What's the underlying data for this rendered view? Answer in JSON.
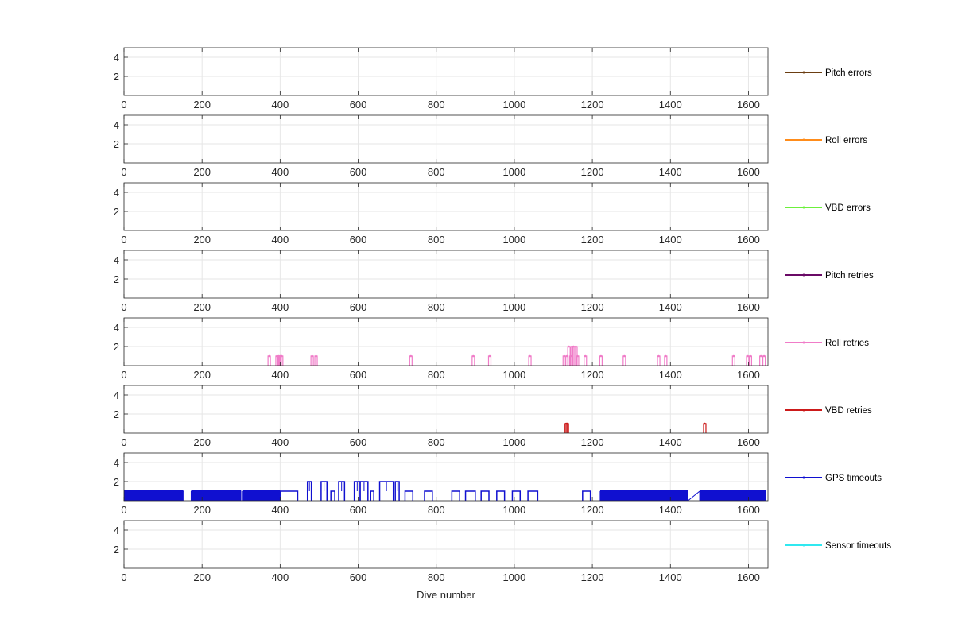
{
  "chart_data": {
    "type": "line",
    "xlabel": "Dive number",
    "xlim": [
      0,
      1650
    ],
    "xticks": [
      0,
      200,
      400,
      600,
      800,
      1000,
      1200,
      1400,
      1600
    ],
    "ylim": [
      0,
      5
    ],
    "yticks": [
      2,
      4
    ],
    "grid": true,
    "legend_placement": "right",
    "panels": [
      {
        "name": "Pitch errors",
        "color": "#6b3e12",
        "points": []
      },
      {
        "name": "Roll errors",
        "color": "#ff8c1a",
        "points": []
      },
      {
        "name": "VBD errors",
        "color": "#6cf03c",
        "points": []
      },
      {
        "name": "Pitch retries",
        "color": "#6a0a66",
        "points": []
      },
      {
        "name": "Roll retries",
        "color": "#f07cc8",
        "points": [
          [
            372,
            1
          ],
          [
            392,
            1
          ],
          [
            396,
            1
          ],
          [
            400,
            1
          ],
          [
            404,
            1
          ],
          [
            482,
            1
          ],
          [
            492,
            1
          ],
          [
            735,
            1
          ],
          [
            895,
            1
          ],
          [
            937,
            1
          ],
          [
            1040,
            1
          ],
          [
            1128,
            1
          ],
          [
            1135,
            1
          ],
          [
            1140,
            2
          ],
          [
            1145,
            1
          ],
          [
            1148,
            2
          ],
          [
            1152,
            2
          ],
          [
            1158,
            2
          ],
          [
            1162,
            1
          ],
          [
            1182,
            1
          ],
          [
            1222,
            1
          ],
          [
            1282,
            1
          ],
          [
            1370,
            1
          ],
          [
            1388,
            1
          ],
          [
            1562,
            1
          ],
          [
            1598,
            1
          ],
          [
            1605,
            1
          ],
          [
            1632,
            1
          ],
          [
            1640,
            1
          ]
        ]
      },
      {
        "name": "VBD retries",
        "color": "#cc1a1a",
        "points": [
          [
            1133,
            1
          ],
          [
            1136,
            1
          ],
          [
            1488,
            1
          ]
        ]
      },
      {
        "name": "GPS timeouts",
        "color": "#1010d0",
        "points": []
      },
      {
        "name": "Sensor timeouts",
        "color": "#30e8f0",
        "points": []
      }
    ],
    "gps_timeouts": {
      "dense_ranges_value_1": [
        [
          0,
          152
        ],
        [
          172,
          300
        ],
        [
          305,
          400
        ],
        [
          1220,
          1445
        ],
        [
          1475,
          1645
        ]
      ],
      "blocks_value_1": [
        [
          400,
          445
        ],
        [
          530,
          540
        ],
        [
          632,
          640
        ],
        [
          720,
          740
        ],
        [
          770,
          790
        ],
        [
          840,
          860
        ],
        [
          875,
          900
        ],
        [
          915,
          935
        ],
        [
          955,
          975
        ],
        [
          995,
          1015
        ],
        [
          1035,
          1060
        ],
        [
          1175,
          1195
        ]
      ],
      "blocks_value_2": [
        [
          470,
          480
        ],
        [
          505,
          520
        ],
        [
          550,
          565
        ],
        [
          590,
          605
        ],
        [
          605,
          625
        ],
        [
          655,
          690
        ],
        [
          695,
          705
        ]
      ],
      "slope_segment": [
        [
          1445,
          0
        ],
        [
          1475,
          1
        ]
      ]
    }
  }
}
